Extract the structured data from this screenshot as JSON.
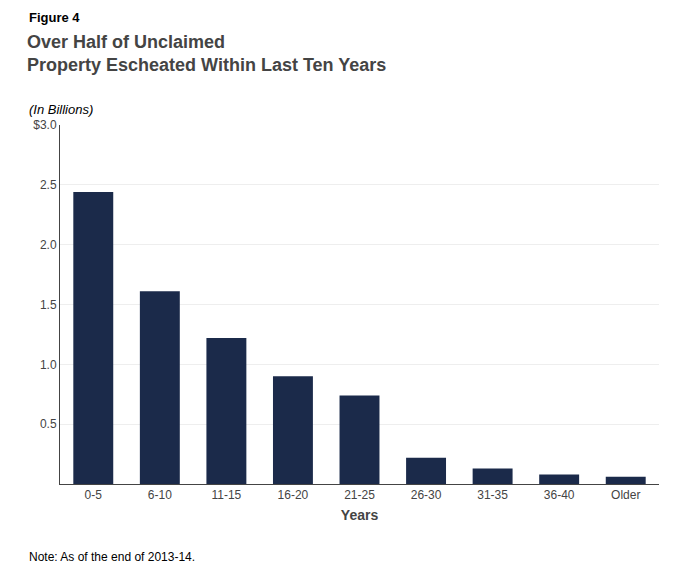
{
  "chart_data": {
    "type": "bar",
    "title": "Over Half of Unclaimed\nProperty Escheated Within Last Ten Years",
    "subtitle": "(In Billions)",
    "xlabel": "Years",
    "categories": [
      "0-5",
      "6-10",
      "11-15",
      "16-20",
      "21-25",
      "26-30",
      "31-35",
      "36-40",
      "Older"
    ],
    "values": [
      2.44,
      1.61,
      1.22,
      0.9,
      0.74,
      0.22,
      0.13,
      0.08,
      0.06
    ],
    "color": "#1B2A4A",
    "ylim": [
      0,
      3.0
    ],
    "yticks": [
      0.5,
      {
        "value": 1.0,
        "label": "1.0"
      },
      1.5,
      {
        "value": 2.0,
        "label": "2.0"
      },
      2.5,
      {
        "value": 3.0,
        "label": "$3.0"
      }
    ],
    "grid": true,
    "annotations": [
      "Figure 4",
      "Note: As of the end of 2013-14."
    ]
  }
}
